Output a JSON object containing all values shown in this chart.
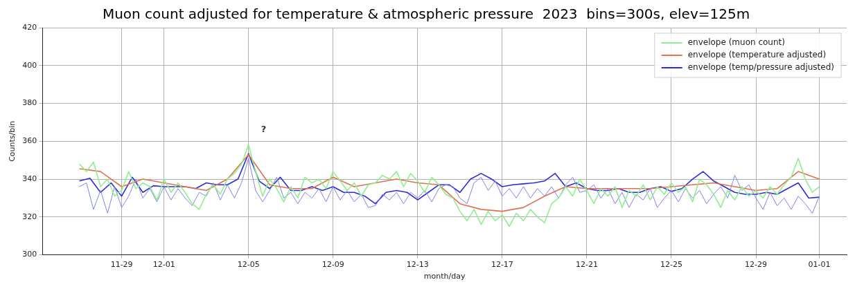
{
  "chart_data": {
    "type": "line",
    "title": "Muon count adjusted for temperature & atmospheric pressure  2023  bins=300s, elev=125m",
    "xlabel": "month/day",
    "ylabel": "Counts/bin",
    "x": [
      "2023-11-27T00:00",
      "2023-11-27T08:00",
      "2023-11-27T16:00",
      "2023-11-28T00:00",
      "2023-11-28T08:00",
      "2023-11-28T16:00",
      "2023-11-29T00:00",
      "2023-11-29T08:00",
      "2023-11-29T16:00",
      "2023-11-30T00:00",
      "2023-11-30T08:00",
      "2023-11-30T16:00",
      "2023-12-01T00:00",
      "2023-12-01T08:00",
      "2023-12-01T16:00",
      "2023-12-02T00:00",
      "2023-12-02T08:00",
      "2023-12-02T16:00",
      "2023-12-03T00:00",
      "2023-12-03T08:00",
      "2023-12-03T16:00",
      "2023-12-04T00:00",
      "2023-12-04T08:00",
      "2023-12-04T16:00",
      "2023-12-05T00:00",
      "2023-12-05T08:00",
      "2023-12-05T16:00",
      "2023-12-06T00:00",
      "2023-12-06T08:00",
      "2023-12-06T16:00",
      "2023-12-07T00:00",
      "2023-12-07T08:00",
      "2023-12-07T16:00",
      "2023-12-08T00:00",
      "2023-12-08T08:00",
      "2023-12-08T16:00",
      "2023-12-09T00:00",
      "2023-12-09T08:00",
      "2023-12-09T16:00",
      "2023-12-10T00:00",
      "2023-12-10T08:00",
      "2023-12-10T16:00",
      "2023-12-11T00:00",
      "2023-12-11T08:00",
      "2023-12-11T16:00",
      "2023-12-12T00:00",
      "2023-12-12T08:00",
      "2023-12-12T16:00",
      "2023-12-13T00:00",
      "2023-12-13T08:00",
      "2023-12-13T16:00",
      "2023-12-14T00:00",
      "2023-12-14T08:00",
      "2023-12-14T16:00",
      "2023-12-15T00:00",
      "2023-12-15T08:00",
      "2023-12-15T16:00",
      "2023-12-16T00:00",
      "2023-12-16T08:00",
      "2023-12-16T16:00",
      "2023-12-17T00:00",
      "2023-12-17T08:00",
      "2023-12-17T16:00",
      "2023-12-18T00:00",
      "2023-12-18T08:00",
      "2023-12-18T16:00",
      "2023-12-19T00:00",
      "2023-12-19T08:00",
      "2023-12-19T16:00",
      "2023-12-20T00:00",
      "2023-12-20T08:00",
      "2023-12-20T16:00",
      "2023-12-21T00:00",
      "2023-12-21T08:00",
      "2023-12-21T16:00",
      "2023-12-22T00:00",
      "2023-12-22T08:00",
      "2023-12-22T16:00",
      "2023-12-23T00:00",
      "2023-12-23T08:00",
      "2023-12-23T16:00",
      "2023-12-24T00:00",
      "2023-12-24T08:00",
      "2023-12-24T16:00",
      "2023-12-25T00:00",
      "2023-12-25T08:00",
      "2023-12-25T16:00",
      "2023-12-26T00:00",
      "2023-12-26T08:00",
      "2023-12-26T16:00",
      "2023-12-27T00:00",
      "2023-12-27T08:00",
      "2023-12-27T16:00",
      "2023-12-28T00:00",
      "2023-12-28T08:00",
      "2023-12-28T16:00",
      "2023-12-29T00:00",
      "2023-12-29T08:00",
      "2023-12-29T16:00",
      "2023-12-30T00:00",
      "2023-12-30T08:00",
      "2023-12-30T16:00",
      "2023-12-31T00:00",
      "2023-12-31T08:00",
      "2023-12-31T16:00",
      "2024-01-01T00:00"
    ],
    "series": [
      {
        "name": "envelope (muon count)",
        "color": "#90ee90",
        "values": [
          348,
          344,
          349,
          336,
          340,
          331,
          334,
          344,
          335,
          338,
          336,
          329,
          340,
          333,
          338,
          333,
          327,
          324,
          332,
          337,
          332,
          340,
          343,
          348,
          358,
          344,
          331,
          340,
          335,
          328,
          336,
          330,
          341,
          338,
          340,
          335,
          344,
          339,
          334,
          338,
          331,
          337,
          338,
          342,
          340,
          344,
          336,
          343,
          339,
          333,
          341,
          337,
          332,
          330,
          323,
          318,
          324,
          316,
          323,
          318,
          321,
          315,
          322,
          318,
          324,
          320,
          317,
          327,
          330,
          336,
          331,
          340,
          334,
          327,
          335,
          331,
          336,
          325,
          334,
          331,
          337,
          329,
          336,
          332,
          338,
          333,
          336,
          328,
          340,
          337,
          332,
          325,
          334,
          329,
          336,
          331,
          334,
          330,
          336,
          332,
          337,
          341,
          351,
          340,
          333,
          336
        ]
      },
      {
        "name": "envelope (temperature adjusted)",
        "color": "#e0704e",
        "x": [
          "2023-11-27",
          "2023-11-28",
          "2023-11-29",
          "2023-11-30",
          "2023-12-01",
          "2023-12-02",
          "2023-12-03",
          "2023-12-04",
          "2023-12-05",
          "2023-12-06",
          "2023-12-07",
          "2023-12-08",
          "2023-12-09",
          "2023-12-10",
          "2023-12-11",
          "2023-12-12",
          "2023-12-13",
          "2023-12-14",
          "2023-12-15",
          "2023-12-16",
          "2023-12-17",
          "2023-12-18",
          "2023-12-19",
          "2023-12-20",
          "2023-12-21",
          "2023-12-22",
          "2023-12-23",
          "2023-12-24",
          "2023-12-25",
          "2023-12-26",
          "2023-12-27",
          "2023-12-28",
          "2023-12-29",
          "2023-12-30",
          "2023-12-31",
          "2024-01-01"
        ],
        "values": [
          345.5,
          344,
          336,
          340,
          338,
          336,
          334,
          340,
          353,
          337,
          335,
          335,
          341,
          336,
          338,
          340,
          338,
          337,
          327,
          324,
          323,
          325,
          331,
          336,
          335,
          335,
          335,
          335,
          336,
          337,
          338,
          336,
          334,
          335,
          344,
          340
        ]
      },
      {
        "color": "#8080f0",
        "values": [
          336,
          338,
          324,
          334,
          322,
          336,
          325,
          331,
          340,
          330,
          335,
          328,
          336,
          329,
          335,
          330,
          326,
          333,
          331,
          338,
          329,
          337,
          330,
          338,
          351,
          334,
          328,
          334,
          341,
          330,
          333,
          327,
          333,
          330,
          335,
          328,
          336,
          329,
          334,
          328,
          332,
          325,
          326,
          332,
          329,
          333,
          327,
          333,
          330,
          334,
          328,
          335,
          337,
          336,
          330,
          327,
          338,
          341,
          334,
          339,
          331,
          335,
          330,
          336,
          330,
          335,
          331,
          336,
          330,
          337,
          341,
          333,
          334,
          337,
          330,
          335,
          327,
          333,
          325,
          332,
          329,
          335,
          325,
          330,
          334,
          328,
          335,
          330,
          334,
          327,
          332,
          336,
          330,
          342,
          334,
          337,
          330,
          324,
          333,
          326,
          330,
          324,
          331,
          327,
          322,
          331
        ]
      },
      {
        "name": "envelope (temp/pressure adjusted)",
        "color": "#2c2cd8",
        "x": [
          "2023-11-27T00:00",
          "2023-11-27T12:00",
          "2023-11-28T00:00",
          "2023-11-28T12:00",
          "2023-11-29T00:00",
          "2023-11-29T12:00",
          "2023-11-30T00:00",
          "2023-11-30T12:00",
          "2023-12-01T00:00",
          "2023-12-01T12:00",
          "2023-12-02T00:00",
          "2023-12-02T12:00",
          "2023-12-03T00:00",
          "2023-12-03T12:00",
          "2023-12-04T00:00",
          "2023-12-04T12:00",
          "2023-12-05T00:00",
          "2023-12-05T12:00",
          "2023-12-06T00:00",
          "2023-12-06T12:00",
          "2023-12-07T00:00",
          "2023-12-07T12:00",
          "2023-12-08T00:00",
          "2023-12-08T12:00",
          "2023-12-09T00:00",
          "2023-12-09T12:00",
          "2023-12-10T00:00",
          "2023-12-10T12:00",
          "2023-12-11T00:00",
          "2023-12-11T12:00",
          "2023-12-12T00:00",
          "2023-12-12T12:00",
          "2023-12-13T00:00",
          "2023-12-13T12:00",
          "2023-12-14T00:00",
          "2023-12-14T12:00",
          "2023-12-15T00:00",
          "2023-12-15T12:00",
          "2023-12-16T00:00",
          "2023-12-16T12:00",
          "2023-12-17T00:00",
          "2023-12-17T12:00",
          "2023-12-18T00:00",
          "2023-12-18T12:00",
          "2023-12-19T00:00",
          "2023-12-19T12:00",
          "2023-12-20T00:00",
          "2023-12-20T12:00",
          "2023-12-21T00:00",
          "2023-12-21T12:00",
          "2023-12-22T00:00",
          "2023-12-22T12:00",
          "2023-12-23T00:00",
          "2023-12-23T12:00",
          "2023-12-24T00:00",
          "2023-12-24T12:00",
          "2023-12-25T00:00",
          "2023-12-25T12:00",
          "2023-12-26T00:00",
          "2023-12-26T12:00",
          "2023-12-27T00:00",
          "2023-12-27T12:00",
          "2023-12-28T00:00",
          "2023-12-28T12:00",
          "2023-12-29T00:00",
          "2023-12-29T12:00",
          "2023-12-30T00:00",
          "2023-12-30T12:00",
          "2023-12-31T00:00",
          "2023-12-31T12:00",
          "2024-01-01T00:00"
        ],
        "values": [
          339,
          340.5,
          333,
          338,
          331,
          341,
          333,
          336.5,
          336,
          336,
          336,
          335,
          338,
          337,
          337,
          340,
          353.5,
          339,
          335,
          341,
          334,
          334,
          336,
          334,
          336,
          333,
          333,
          331,
          327,
          333,
          334,
          333,
          329,
          333,
          337,
          337,
          333,
          340,
          343,
          340,
          336,
          337,
          337.5,
          338,
          339,
          343,
          336,
          338,
          335,
          334,
          334,
          335,
          333,
          333,
          335,
          336,
          333.5,
          335,
          340,
          344,
          339,
          336,
          333,
          332,
          332,
          333,
          332,
          335,
          338,
          330,
          330.5
        ]
      }
    ],
    "xlim": [
      "2023-11-25T06:00",
      "2024-01-02T07:00"
    ],
    "xticks": [
      {
        "value": "2023-11-29",
        "label": "11-29"
      },
      {
        "value": "2023-12-01",
        "label": "12-01"
      },
      {
        "value": "2023-12-05",
        "label": "12-05"
      },
      {
        "value": "2023-12-09",
        "label": "12-09"
      },
      {
        "value": "2023-12-13",
        "label": "12-13"
      },
      {
        "value": "2023-12-17",
        "label": "12-17"
      },
      {
        "value": "2023-12-21",
        "label": "12-21"
      },
      {
        "value": "2023-12-25",
        "label": "12-25"
      },
      {
        "value": "2023-12-29",
        "label": "12-29"
      },
      {
        "value": "2024-01-01",
        "label": "01-01"
      }
    ],
    "ylim": [
      300,
      420
    ],
    "yticks": [
      300,
      320,
      340,
      360,
      380,
      400,
      420
    ],
    "annotations": [
      "?"
    ],
    "grid": true,
    "legend": "top right",
    "marker": "none",
    "line_style": "solid"
  }
}
